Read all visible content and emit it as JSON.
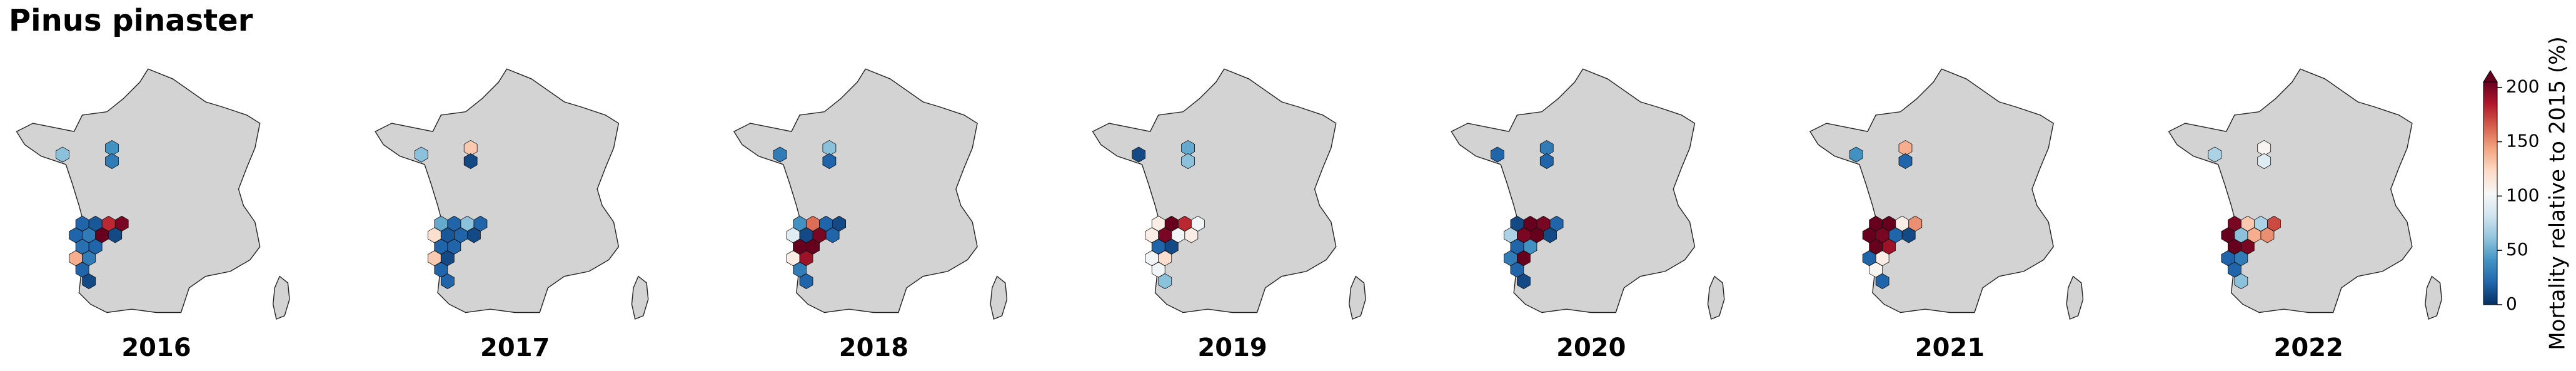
{
  "title": "Pinus pinaster",
  "panels": [
    {
      "year": "2016",
      "values": [
        60,
        40,
        30,
        20,
        15,
        180,
        200,
        20,
        30,
        220,
        10,
        25,
        20,
        140,
        30,
        20,
        10
      ]
    },
    {
      "year": "2017",
      "values": [
        60,
        130,
        10,
        50,
        20,
        60,
        20,
        120,
        15,
        20,
        10,
        20,
        20,
        130,
        10,
        20,
        20
      ]
    },
    {
      "year": "2018",
      "values": [
        30,
        60,
        20,
        40,
        160,
        20,
        10,
        90,
        10,
        200,
        20,
        210,
        220,
        110,
        190,
        30,
        20
      ]
    },
    {
      "year": "2019",
      "values": [
        10,
        50,
        60,
        110,
        220,
        180,
        100,
        110,
        200,
        100,
        110,
        20,
        10,
        100,
        120,
        100,
        60
      ]
    },
    {
      "year": "2020",
      "values": [
        20,
        30,
        20,
        10,
        220,
        200,
        20,
        70,
        200,
        220,
        10,
        20,
        40,
        30,
        220,
        20,
        10
      ]
    },
    {
      "year": "2021",
      "values": [
        40,
        140,
        20,
        220,
        210,
        110,
        150,
        220,
        200,
        20,
        10,
        210,
        190,
        20,
        110,
        105,
        20
      ]
    },
    {
      "year": "2022",
      "values": [
        70,
        105,
        90,
        200,
        130,
        70,
        170,
        210,
        60,
        140,
        150,
        220,
        200,
        20,
        30,
        20,
        60
      ]
    }
  ],
  "colorbar": {
    "label": "Mortality relative to 2015 (%)",
    "lim": [
      0,
      205
    ],
    "ticks": [
      0,
      50,
      100,
      150,
      200
    ],
    "extend": "max",
    "colors": [
      "#053061",
      "#2166ac",
      "#4393c3",
      "#92c5de",
      "#d1e5f0",
      "#f7f7f7",
      "#fddbc7",
      "#f4a582",
      "#d6604d",
      "#b2182b",
      "#67001f"
    ]
  }
}
